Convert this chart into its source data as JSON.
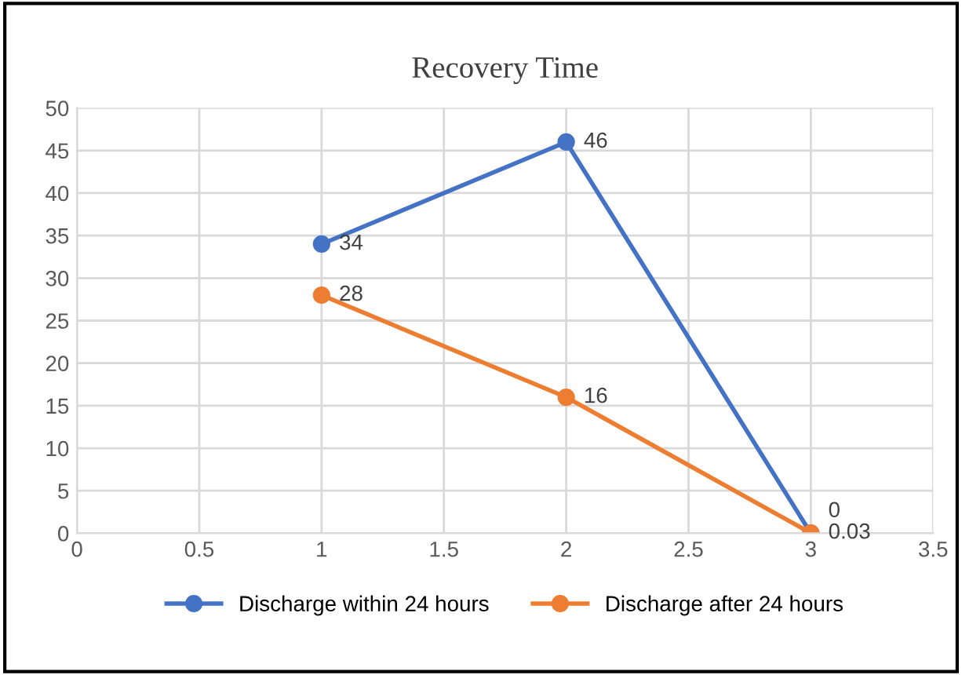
{
  "chart_data": {
    "type": "line",
    "title": "Recovery Time",
    "xlim": [
      0,
      3.5
    ],
    "xticks": [
      0,
      0.5,
      1,
      1.5,
      2,
      2.5,
      3,
      3.5
    ],
    "ylim": [
      0,
      50
    ],
    "yticks": [
      0,
      5,
      10,
      15,
      20,
      25,
      30,
      35,
      40,
      45,
      50
    ],
    "grid": true,
    "legend": "bottom",
    "marker": "circle",
    "series": [
      {
        "name": "Discharge within 24 hours",
        "color": "#4472c4",
        "x": [
          1,
          2,
          3
        ],
        "values": [
          34,
          46,
          0
        ],
        "value_labels": [
          "34",
          "46",
          "0"
        ]
      },
      {
        "name": "Discharge after 24 hours",
        "color": "#ed7d31",
        "x": [
          1,
          2,
          3
        ],
        "values": [
          28,
          16,
          0.03
        ],
        "value_labels": [
          "28",
          "16",
          "0.03"
        ]
      }
    ]
  }
}
